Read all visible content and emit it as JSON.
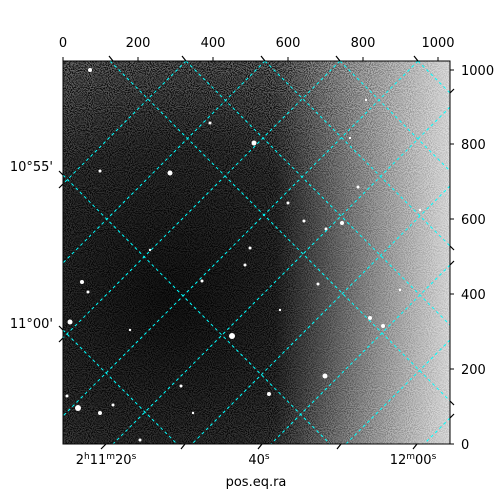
{
  "figure": {
    "xlabel": "pos.eq.ra",
    "pixel_axis_top": {
      "ticks": [
        "0",
        "200",
        "400",
        "600",
        "800",
        "1000"
      ]
    },
    "pixel_axis_right": {
      "ticks": [
        "0",
        "200",
        "400",
        "600",
        "800",
        "1000"
      ]
    },
    "ra_ticks": [
      {
        "h": "2",
        "hu": "h",
        "m": "11",
        "mu": "m",
        "s": "20",
        "su": "s"
      },
      {
        "h": "",
        "hu": "",
        "m": "",
        "mu": "",
        "s": "40",
        "su": "s"
      },
      {
        "h": "",
        "hu": "",
        "m": "12",
        "mu": "m",
        "s": "00",
        "su": "s"
      }
    ],
    "dec_ticks": [
      "10°55'",
      "11°00'"
    ],
    "colors": {
      "grid": "#00ffff",
      "frame": "#000000",
      "background": "#ffffff"
    },
    "image_description_kind": "astronomical-noise-image"
  }
}
